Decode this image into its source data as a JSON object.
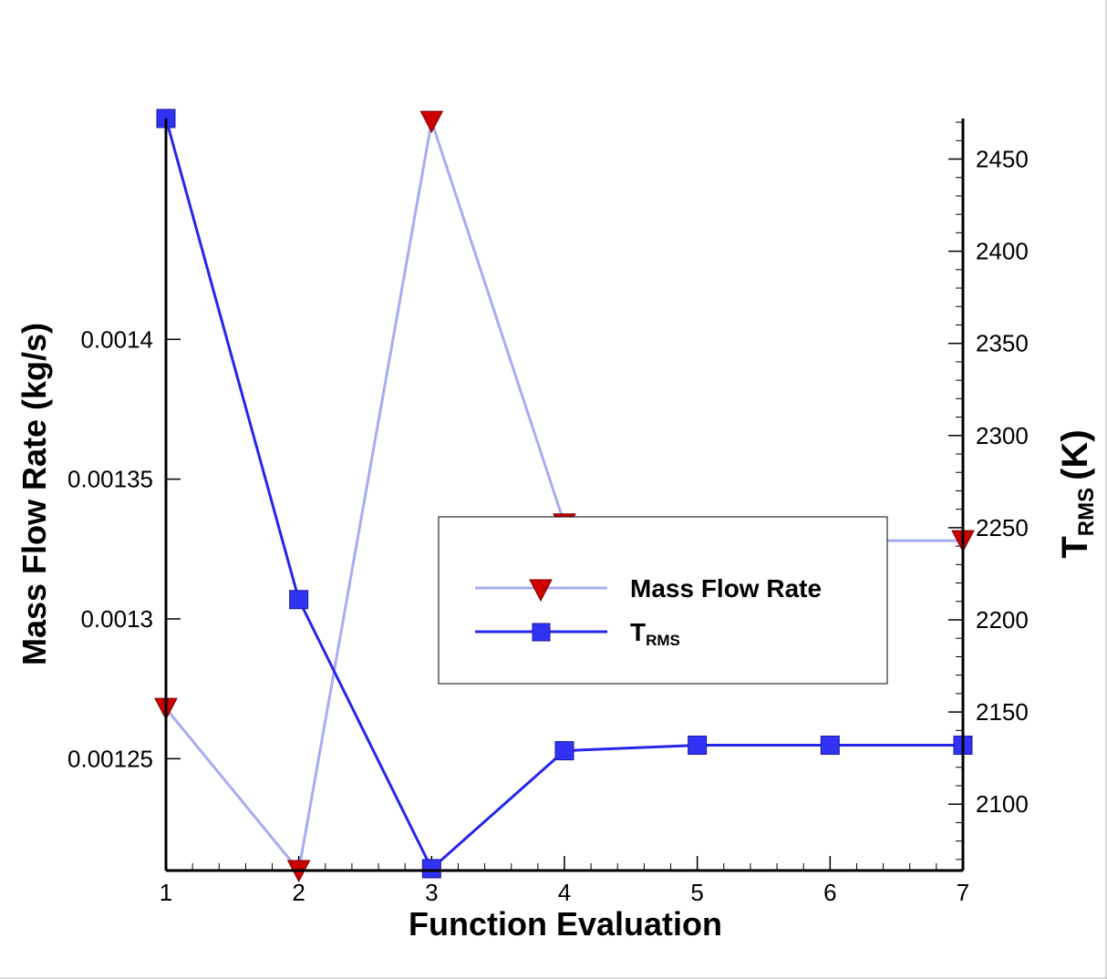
{
  "chart_data": {
    "type": "line",
    "x": [
      1,
      2,
      3,
      4,
      5,
      6,
      7
    ],
    "xlabel": "Function Evaluation",
    "xlim": [
      1,
      7
    ],
    "x_ticks": [
      1,
      2,
      3,
      4,
      5,
      6,
      7
    ],
    "y_left": {
      "label": "Mass Flow Rate (kg/s)",
      "lim": [
        0.00121,
        0.001479
      ],
      "ticks": [
        "0.00125",
        "0.0013",
        "0.00135",
        "0.0014"
      ],
      "tick_values": [
        0.00125,
        0.0013,
        0.00135,
        0.0014
      ]
    },
    "y_right": {
      "label_main": "T",
      "label_sub": "RMS",
      "label_unit": "(K)",
      "lim": [
        2064,
        2472
      ],
      "ticks": [
        "2100",
        "2150",
        "2200",
        "2250",
        "2300",
        "2350",
        "2400",
        "2450"
      ],
      "tick_values": [
        2100,
        2150,
        2200,
        2250,
        2300,
        2350,
        2400,
        2450
      ]
    },
    "series": [
      {
        "name": "Mass Flow Rate",
        "axis": "left",
        "values": [
          0.001268,
          0.00121,
          0.001478,
          0.001334,
          0.001328,
          0.001328,
          0.001328
        ],
        "line_color": "#a8acf0",
        "marker": "triangle-down",
        "marker_color": "#cc0000"
      },
      {
        "name_main": "T",
        "name_sub": "RMS",
        "axis": "right",
        "values": [
          2472,
          2211,
          2065,
          2129,
          2132,
          2132,
          2132
        ],
        "line_color": "#2525ee",
        "marker": "square",
        "marker_color": "#3232f5"
      }
    ],
    "legend_position": "center-right",
    "grid": false
  }
}
